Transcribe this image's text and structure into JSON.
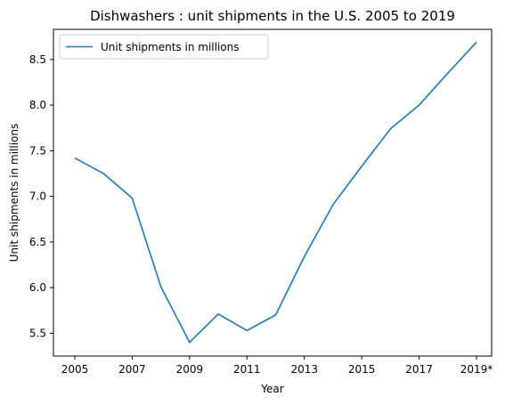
{
  "chart_data": {
    "type": "line",
    "title": "Dishwashers : unit shipments in the U.S. 2005 to 2019",
    "xlabel": "Year",
    "ylabel": "Unit shipments in millions",
    "categories": [
      "2005",
      "2006",
      "2007",
      "2008",
      "2009",
      "2010",
      "2011",
      "2012",
      "2013",
      "2014",
      "2015",
      "2016",
      "2017",
      "2018",
      "2019*"
    ],
    "x_tick_labels": [
      "2005",
      "2007",
      "2009",
      "2011",
      "2013",
      "2015",
      "2017",
      "2019*"
    ],
    "y_ticks": [
      "5.5",
      "6.0",
      "6.5",
      "7.0",
      "7.5",
      "8.0",
      "8.5"
    ],
    "ylim": [
      5.25,
      8.83
    ],
    "grid": false,
    "legend_position": "top-left",
    "series": [
      {
        "name": "Unit shipments in millions",
        "color": "#1f77b4",
        "values": [
          7.42,
          7.25,
          6.98,
          6.01,
          5.4,
          5.71,
          5.53,
          5.7,
          6.34,
          6.91,
          7.33,
          7.74,
          8.0,
          8.35,
          8.69
        ]
      }
    ]
  }
}
